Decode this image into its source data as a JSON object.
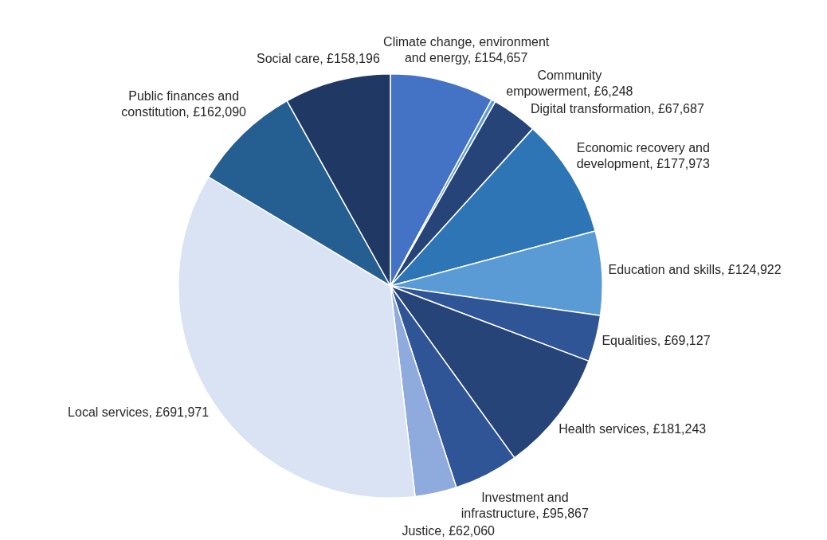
{
  "chart_data": {
    "type": "pie",
    "categories": [
      "Climate change, environment and energy",
      "Community empowerment",
      "Digital transformation",
      "Economic recovery and development",
      "Education and skills",
      "Equalities",
      "Health services",
      "Investment and infrastructure",
      "Justice",
      "Local services",
      "Public finances and constitution",
      "Social care"
    ],
    "values": [
      154657,
      6248,
      67687,
      177973,
      124922,
      69127,
      181243,
      95867,
      62060,
      691971,
      162090,
      158196
    ],
    "value_labels": [
      "£154,657",
      "£6,248",
      "£67,687",
      "£177,973",
      "£124,922",
      "£69,127",
      "£181,243",
      "£95,867",
      "£62,060",
      "£691,971",
      "£162,090",
      "£158,196"
    ],
    "colors": [
      "#4472c4",
      "#5b9bd5",
      "#264478",
      "#2e75b6",
      "#5b9bd5",
      "#2f5597",
      "#264478",
      "#2f5597",
      "#8faadc",
      "#dae3f3",
      "#255e91",
      "#203864"
    ],
    "legend": false
  }
}
